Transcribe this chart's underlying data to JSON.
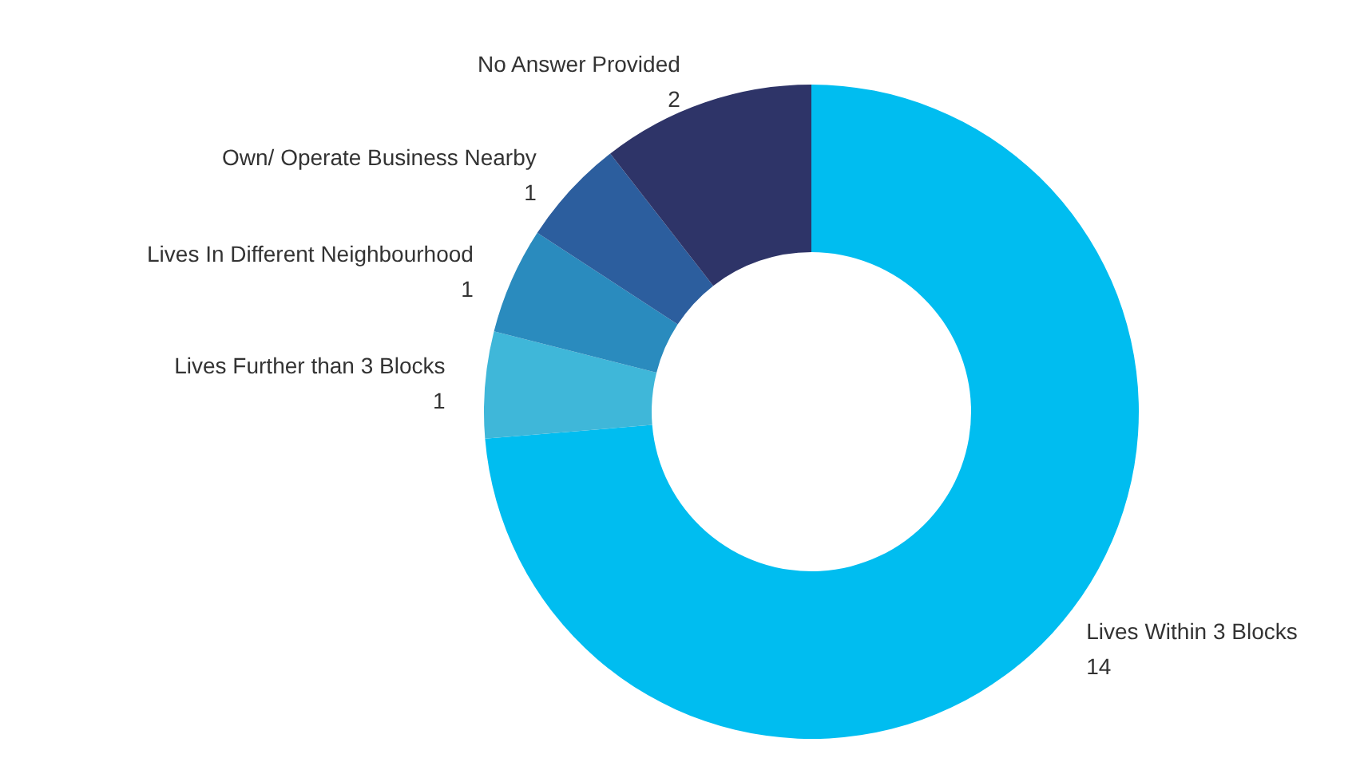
{
  "chart_data": {
    "type": "donut",
    "categories": [
      "Lives Within 3 Blocks",
      "Lives Further than 3 Blocks",
      "Lives In Different Neighbourhood",
      "Own/ Operate Business Nearby",
      "No Answer Provided"
    ],
    "values": [
      14,
      1,
      1,
      1,
      2
    ],
    "colors": [
      "#00bdf0",
      "#3fb7d9",
      "#2a8bbe",
      "#2c5e9e",
      "#2e3468"
    ],
    "data_labels": true
  }
}
